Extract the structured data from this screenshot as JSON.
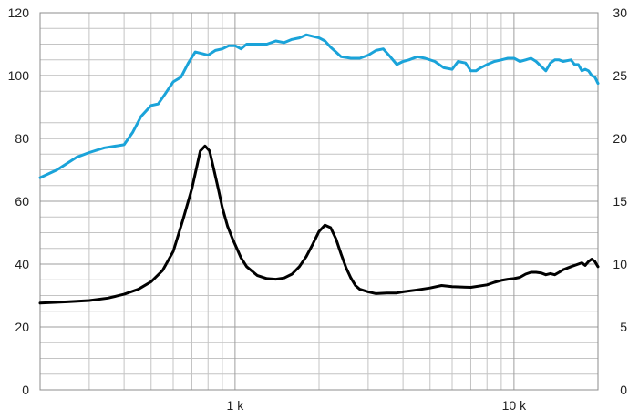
{
  "chart_data": {
    "type": "line",
    "title": "",
    "xlabel": "",
    "ylabel": "",
    "y2label": "",
    "x_scale": "log",
    "xlim": [
      200,
      20000
    ],
    "ylim": [
      0,
      120
    ],
    "y2lim": [
      0,
      30
    ],
    "grid": true,
    "legend": "none",
    "x_tick_labels": [
      {
        "value": 1000,
        "label": "1 k"
      },
      {
        "value": 10000,
        "label": "10 k"
      }
    ],
    "y_tick_labels": [
      "0",
      "20",
      "40",
      "60",
      "80",
      "100",
      "120"
    ],
    "y2_tick_labels": [
      "0",
      "5",
      "10",
      "15",
      "20",
      "25",
      "30"
    ],
    "colors": {
      "series_spl": "#1aa3d9",
      "series_impedance": "#000000",
      "grid_major": "#9e9e9e",
      "grid_minor": "#c4c4c4",
      "frame": "#8c8c8c"
    },
    "series": [
      {
        "axis": "left",
        "x": [
          200,
          230,
          270,
          300,
          340,
          400,
          430,
          460,
          500,
          530,
          560,
          600,
          640,
          680,
          720,
          760,
          800,
          850,
          900,
          950,
          1000,
          1050,
          1100,
          1150,
          1200,
          1300,
          1400,
          1500,
          1600,
          1700,
          1800,
          1900,
          2000,
          2100,
          2200,
          2300,
          2400,
          2600,
          2800,
          3000,
          3200,
          3400,
          3600,
          3800,
          4000,
          4200,
          4500,
          4800,
          5200,
          5600,
          6000,
          6300,
          6700,
          7000,
          7300,
          7600,
          8000,
          8500,
          9000,
          9500,
          10000,
          10500,
          11000,
          11500,
          12000,
          12500,
          13000,
          13500,
          14000,
          14500,
          15000,
          16000,
          16500,
          17000,
          17500,
          18000,
          18500,
          19000,
          19500,
          20000
        ],
        "values": [
          67.5,
          70,
          74,
          75.5,
          77,
          78,
          82,
          87,
          90.5,
          91,
          94,
          98,
          99.5,
          104,
          107.5,
          107,
          106.5,
          108,
          108.5,
          109.5,
          109.5,
          108.5,
          110,
          110,
          110,
          110,
          111,
          110.5,
          111.5,
          112,
          113,
          112.5,
          112,
          111,
          109,
          107.5,
          106,
          105.5,
          105.5,
          106.5,
          108,
          108.5,
          106,
          103.5,
          104.5,
          105,
          106,
          105.5,
          104.5,
          102.5,
          102,
          104.5,
          104,
          101.5,
          101.5,
          102.5,
          103.5,
          104.5,
          105,
          105.5,
          105.5,
          104.5,
          105,
          105.5,
          104.5,
          103,
          101.5,
          104,
          105,
          105,
          104.5,
          105,
          103.5,
          103.5,
          101.5,
          102,
          101.5,
          100,
          99.5,
          97.5
        ]
      },
      {
        "axis": "right",
        "x": [
          200,
          250,
          300,
          350,
          400,
          450,
          500,
          550,
          600,
          650,
          700,
          750,
          780,
          810,
          840,
          870,
          900,
          940,
          980,
          1050,
          1100,
          1200,
          1300,
          1400,
          1500,
          1600,
          1700,
          1800,
          1900,
          2000,
          2100,
          2200,
          2300,
          2400,
          2500,
          2600,
          2700,
          2800,
          3000,
          3200,
          3500,
          3800,
          4000,
          4500,
          5000,
          5500,
          6000,
          7000,
          8000,
          8500,
          9000,
          9500,
          10000,
          10500,
          11000,
          11500,
          12000,
          12500,
          13000,
          13500,
          14000,
          14500,
          15000,
          16000,
          17000,
          17500,
          18000,
          18500,
          19000,
          19500,
          20000
        ],
        "values": [
          6.9,
          7.0,
          7.1,
          7.3,
          7.6,
          8.0,
          8.6,
          9.5,
          11.0,
          13.5,
          16.0,
          19.0,
          19.4,
          19.0,
          17.5,
          16.0,
          14.5,
          13.0,
          12.0,
          10.5,
          9.8,
          9.1,
          8.85,
          8.8,
          8.9,
          9.2,
          9.8,
          10.6,
          11.6,
          12.6,
          13.1,
          12.9,
          12.0,
          10.8,
          9.7,
          8.9,
          8.3,
          8.0,
          7.8,
          7.65,
          7.7,
          7.7,
          7.8,
          7.95,
          8.1,
          8.3,
          8.2,
          8.15,
          8.35,
          8.55,
          8.7,
          8.8,
          8.85,
          8.95,
          9.2,
          9.35,
          9.35,
          9.3,
          9.15,
          9.25,
          9.15,
          9.35,
          9.55,
          9.8,
          10.0,
          10.1,
          9.9,
          10.2,
          10.4,
          10.2,
          9.8
        ]
      }
    ]
  }
}
